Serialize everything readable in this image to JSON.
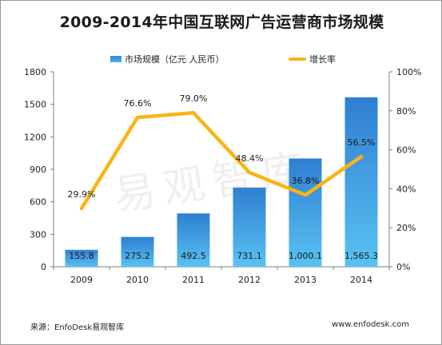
{
  "title": "2009-2014年中国互联网广告运营商市场规模",
  "legend": {
    "bar_label": "市场规模（亿元 人民币）",
    "line_label": "增长率"
  },
  "watermark": "易观智库",
  "source": "来源：EnfoDesk易观智库",
  "website": "www.enfodesk.com",
  "colors": {
    "bar_top": "#2f7fd2",
    "bar_bottom": "#59c2f2",
    "line": "#f8b514",
    "axis": "#7f7f7f"
  },
  "chart_data": {
    "type": "bar+line",
    "title": "2009-2014年中国互联网广告运营商市场规模",
    "categories": [
      "2009",
      "2010",
      "2011",
      "2012",
      "2013",
      "2014"
    ],
    "series": [
      {
        "name": "市场规模（亿元 人民币）",
        "type": "bar",
        "axis": "left",
        "values": [
          155.8,
          275.2,
          492.5,
          731.1,
          1000.1,
          1565.3
        ],
        "labels": [
          "155.8",
          "275.2",
          "492.5",
          "731.1",
          "1,000.1",
          "1,565.3"
        ]
      },
      {
        "name": "增长率",
        "type": "line",
        "axis": "right",
        "values": [
          29.9,
          76.6,
          79.0,
          48.4,
          36.8,
          56.5
        ],
        "labels": [
          "29.9%",
          "76.6%",
          "79.0%",
          "48.4%",
          "36.8%",
          "56.5%"
        ]
      }
    ],
    "y_left": {
      "min": 0,
      "max": 1800,
      "ticks": [
        "0",
        "300",
        "600",
        "900",
        "1200",
        "1500",
        "1800"
      ]
    },
    "y_right": {
      "min": 0,
      "max": 100,
      "ticks": [
        "0%",
        "20%",
        "40%",
        "60%",
        "80%",
        "100%"
      ]
    },
    "grid": false,
    "legend_position": "top"
  }
}
